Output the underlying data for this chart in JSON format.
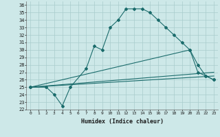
{
  "xlabel": "Humidex (Indice chaleur)",
  "bg_color": "#cde8e8",
  "grid_color": "#a8cccc",
  "line_color": "#1a6b6b",
  "xlim": [
    -0.5,
    23.5
  ],
  "ylim": [
    22,
    36.5
  ],
  "xticks": [
    0,
    1,
    2,
    3,
    4,
    5,
    6,
    7,
    8,
    9,
    10,
    11,
    12,
    13,
    14,
    15,
    16,
    17,
    18,
    19,
    20,
    21,
    22,
    23
  ],
  "yticks": [
    22,
    23,
    24,
    25,
    26,
    27,
    28,
    29,
    30,
    31,
    32,
    33,
    34,
    35,
    36
  ],
  "series": [
    {
      "x": [
        0,
        2,
        3,
        4,
        5,
        7,
        8,
        9,
        10,
        11,
        12,
        13,
        14,
        15,
        16,
        17,
        18,
        19,
        20,
        21,
        22,
        23
      ],
      "y": [
        25,
        25,
        24,
        22.5,
        25,
        27.5,
        30.5,
        30,
        33,
        34,
        35.5,
        35.5,
        35.5,
        35,
        34,
        33,
        32,
        31,
        30,
        28,
        26.5,
        26
      ],
      "has_markers": true
    },
    {
      "x": [
        0,
        20,
        21,
        22,
        23
      ],
      "y": [
        25,
        30,
        27,
        26.5,
        26
      ],
      "has_markers": true
    },
    {
      "x": [
        0,
        23
      ],
      "y": [
        25,
        27
      ],
      "has_markers": false
    },
    {
      "x": [
        0,
        23
      ],
      "y": [
        25,
        26.5
      ],
      "has_markers": false
    }
  ]
}
